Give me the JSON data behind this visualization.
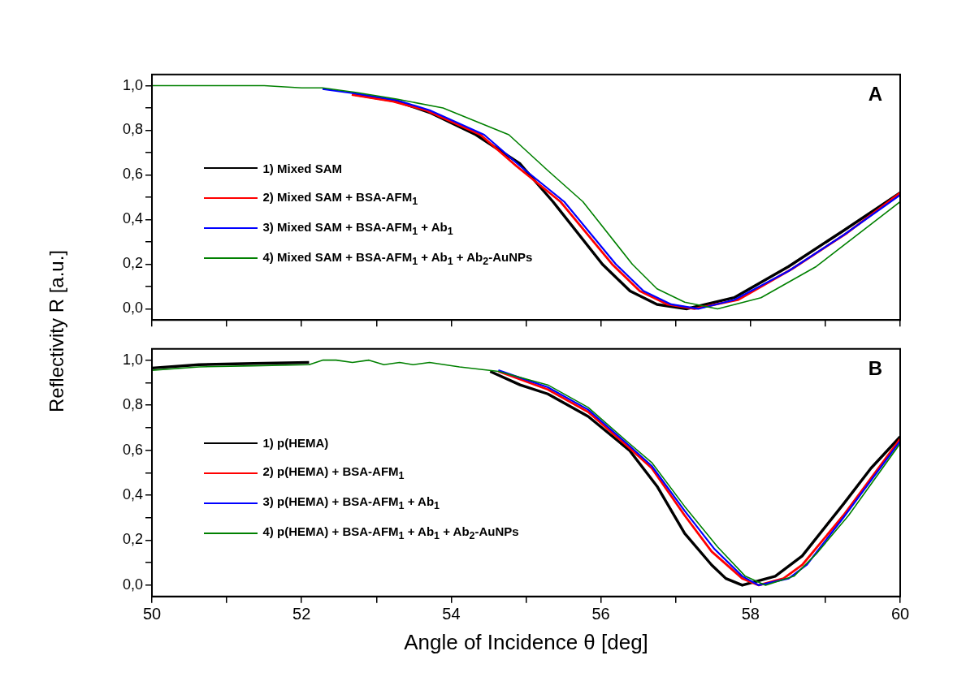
{
  "chart_data": [
    {
      "type": "line",
      "ylabel": "Reflectivity R [a.u.]",
      "annotations": [
        "A"
      ],
      "legend": "left",
      "tick_labels": "y",
      "xlim": [
        50,
        60
      ],
      "xticks": [
        50,
        {
          "value": 51,
          "label": null
        },
        52,
        {
          "value": 53,
          "label": null
        },
        54,
        {
          "value": 55,
          "label": null
        },
        56,
        {
          "value": 57,
          "label": null
        },
        58,
        {
          "value": 59,
          "label": null
        },
        60
      ],
      "ylim": [
        -0.05,
        1.05
      ],
      "yticks": [
        {
          "value": 0,
          "label": "0,0"
        },
        {
          "value": 0.1,
          "label": null
        },
        {
          "value": 0.2,
          "label": "0,2"
        },
        {
          "value": 0.3,
          "label": null
        },
        {
          "value": 0.4,
          "label": "0,4"
        },
        {
          "value": 0.5,
          "label": null
        },
        {
          "value": 0.6,
          "label": "0,6"
        },
        {
          "value": 0.7,
          "label": null
        },
        {
          "value": 0.8,
          "label": "0,8"
        },
        {
          "value": 0.9,
          "label": null
        },
        {
          "value": 1,
          "label": "1,0"
        }
      ],
      "series": [
        {
          "name": "1) Mixed SAM",
          "color": "#000000",
          "x": [
            52.72,
            53.27,
            53.71,
            54.33,
            54.92,
            55.36,
            56.02,
            56.39,
            56.75,
            57.15,
            57.78,
            58.51,
            59.24,
            60
          ],
          "values": [
            0.96,
            0.93,
            0.88,
            0.78,
            0.65,
            0.48,
            0.2,
            0.08,
            0.02,
            0.0,
            0.05,
            0.19,
            0.35,
            0.52
          ]
        },
        {
          "name": "2) Mixed SAM  + BSA-AFM$_{1}$",
          "color": "#ff0000",
          "x": [
            52.67,
            53.22,
            53.66,
            54.39,
            54.87,
            55.46,
            56.15,
            56.52,
            56.89,
            57.25,
            57.83,
            58.56,
            59.29,
            60
          ],
          "values": [
            0.96,
            0.93,
            0.89,
            0.78,
            0.64,
            0.48,
            0.2,
            0.08,
            0.02,
            0.0,
            0.04,
            0.18,
            0.34,
            0.52
          ]
        },
        {
          "name": "3) Mixed SAM  + BSA-AFM$_{1}$ + Ab$_{1}$",
          "color": "#0000ff",
          "x": [
            52.28,
            52.72,
            53.27,
            53.71,
            54.44,
            54.92,
            55.51,
            56.2,
            56.57,
            56.94,
            57.3,
            57.78,
            58.51,
            59.24,
            60
          ],
          "values": [
            0.985,
            0.965,
            0.935,
            0.89,
            0.78,
            0.64,
            0.48,
            0.2,
            0.08,
            0.02,
            0.0,
            0.04,
            0.17,
            0.33,
            0.51
          ]
        },
        {
          "name": "4) Mixed SAM  + BSA-AFM$_{1}$ + Ab$_{1}$ + Ab$_{2}$-AuNPs",
          "color": "#008000",
          "x": [
            50,
            50.5,
            51,
            51.5,
            52,
            52.28,
            52.72,
            53.27,
            53.89,
            54.77,
            55.29,
            55.76,
            56.42,
            56.75,
            57.12,
            57.56,
            58.14,
            58.88,
            60
          ],
          "values": [
            1.0,
            1.0,
            1.0,
            1.0,
            0.99,
            0.99,
            0.97,
            0.94,
            0.9,
            0.78,
            0.62,
            0.48,
            0.2,
            0.09,
            0.03,
            0.0,
            0.05,
            0.19,
            0.48
          ]
        }
      ]
    },
    {
      "type": "line",
      "xlabel": "Angle of Incidence θ [deg]",
      "annotations": [
        "B"
      ],
      "legend": "left",
      "xlim": [
        50,
        60
      ],
      "xticks": [
        50,
        {
          "value": 51,
          "label": null
        },
        52,
        {
          "value": 53,
          "label": null
        },
        54,
        {
          "value": 55,
          "label": null
        },
        56,
        {
          "value": 57,
          "label": null
        },
        58,
        {
          "value": 59,
          "label": null
        },
        60
      ],
      "ylim": [
        -0.05,
        1.05
      ],
      "yticks": [
        {
          "value": 0,
          "label": "0,0"
        },
        {
          "value": 0.1,
          "label": null
        },
        {
          "value": 0.2,
          "label": "0,2"
        },
        {
          "value": 0.3,
          "label": null
        },
        {
          "value": 0.4,
          "label": "0,4"
        },
        {
          "value": 0.5,
          "label": null
        },
        {
          "value": 0.6,
          "label": "0,6"
        },
        {
          "value": 0.7,
          "label": null
        },
        {
          "value": 0.8,
          "label": "0,8"
        },
        {
          "value": 0.9,
          "label": null
        },
        {
          "value": 1,
          "label": "1,0"
        }
      ],
      "series": [
        {
          "name": "1) p(HEMA)",
          "color": "#000000",
          "x": [
            50,
            50.63,
            51.36,
            52.1,
            52.28,
            52.46,
            52.68,
            52.9,
            53.1,
            53.31,
            53.49,
            53.71,
            54.11,
            54.52,
            54.92,
            55.29,
            55.83,
            56.38,
            56.75,
            57.12,
            57.48,
            57.67,
            57.89,
            58.33,
            58.69,
            59.24,
            59.61,
            60
          ],
          "values": [
            0.965,
            0.98,
            0.985,
            0.99,
            null,
            null,
            null,
            null,
            null,
            null,
            null,
            null,
            null,
            0.95,
            0.89,
            0.85,
            0.75,
            0.6,
            0.44,
            0.23,
            0.09,
            0.03,
            0.0,
            0.04,
            0.13,
            0.36,
            0.52,
            0.66
          ]
        },
        {
          "name": "2) p(HEMA)  + BSA-AFM$_{1}$",
          "color": "#ff0000",
          "x": [
            54.63,
            55.29,
            55.83,
            56.38,
            56.68,
            57.12,
            57.48,
            57.89,
            58.11,
            58.44,
            58.69,
            59.24,
            60
          ],
          "values": [
            0.95,
            0.87,
            0.77,
            0.61,
            0.52,
            0.31,
            0.15,
            0.03,
            0.0,
            0.03,
            0.09,
            0.31,
            0.65
          ]
        },
        {
          "name": "3) p(HEMA)  + BSA-AFM$_{1}$ + Ab$_{1}$",
          "color": "#0000ff",
          "x": [
            54.63,
            55.29,
            55.83,
            56.38,
            56.68,
            57.12,
            57.52,
            57.89,
            58.11,
            58.51,
            58.75,
            59.24,
            60
          ],
          "values": [
            0.955,
            0.88,
            0.78,
            0.62,
            0.53,
            0.33,
            0.16,
            0.04,
            0.0,
            0.03,
            0.09,
            0.3,
            0.64
          ]
        },
        {
          "name": "4) p(HEMA)  + BSA-AFM$_{1}$ + Ab$_{1}$ + Ab$_{2}$-AuNPs",
          "color": "#008000",
          "x": [
            50,
            50.63,
            51.36,
            52.1,
            52.28,
            52.46,
            52.68,
            52.9,
            53.1,
            53.31,
            53.49,
            53.71,
            54.11,
            54.63,
            55.29,
            55.83,
            56.38,
            56.68,
            57.12,
            57.56,
            57.93,
            58.2,
            58.58,
            58.88,
            59.31,
            60
          ],
          "values": [
            0.955,
            0.97,
            0.975,
            0.98,
            1.0,
            1.0,
            0.99,
            1.0,
            0.98,
            0.99,
            0.98,
            0.99,
            0.97,
            0.95,
            0.89,
            0.79,
            0.63,
            0.545,
            0.35,
            0.17,
            0.04,
            0.0,
            0.04,
            0.14,
            0.31,
            0.63
          ]
        }
      ]
    }
  ]
}
